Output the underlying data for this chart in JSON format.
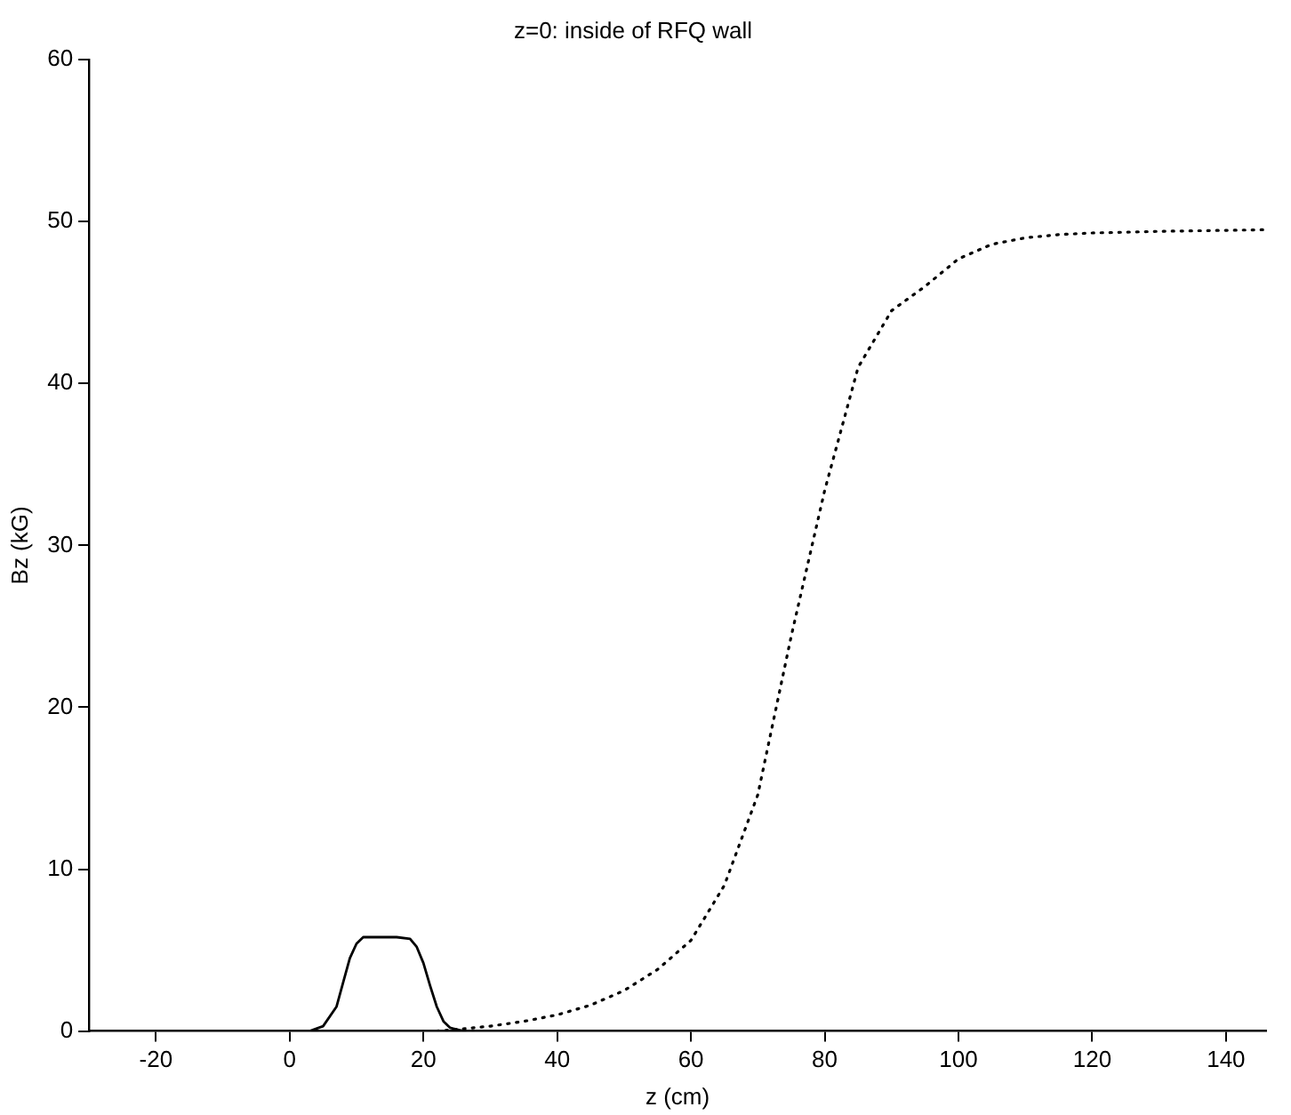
{
  "chart_data": {
    "type": "line",
    "title": "z=0: inside of RFQ wall",
    "xlabel": "z (cm)",
    "ylabel": "Bz (kG)",
    "xlim": [
      -30,
      146
    ],
    "xticks": [
      -20,
      0,
      20,
      40,
      60,
      80,
      100,
      120,
      140
    ],
    "ylim": [
      0,
      60
    ],
    "yticks": [
      0,
      10,
      20,
      30,
      40,
      50,
      60
    ],
    "grid": false,
    "legend": false,
    "marker": "none",
    "series": [
      {
        "color": "#000000",
        "line_style": "solid",
        "x": [
          -30,
          0,
          3,
          5,
          7,
          8,
          9,
          10,
          11,
          12,
          14,
          16,
          18,
          19,
          20,
          21,
          22,
          23,
          24,
          26,
          30
        ],
        "values": [
          0,
          0,
          0,
          0.3,
          1.5,
          3,
          4.5,
          5.4,
          5.8,
          5.8,
          5.8,
          5.8,
          5.7,
          5.2,
          4.2,
          2.8,
          1.5,
          0.6,
          0.2,
          0,
          0
        ]
      },
      {
        "color": "#000000",
        "line_style": "dotted",
        "x": [
          22,
          25,
          30,
          35,
          40,
          45,
          50,
          55,
          60,
          65,
          70,
          75,
          80,
          85,
          90,
          95,
          100,
          105,
          110,
          115,
          120,
          130,
          146
        ],
        "values": [
          0,
          0.1,
          0.3,
          0.6,
          1,
          1.6,
          2.5,
          3.8,
          5.6,
          9,
          14.6,
          24.4,
          33.4,
          41,
          44.5,
          46,
          47.7,
          48.6,
          49,
          49.2,
          49.3,
          49.4,
          49.5
        ]
      }
    ]
  }
}
